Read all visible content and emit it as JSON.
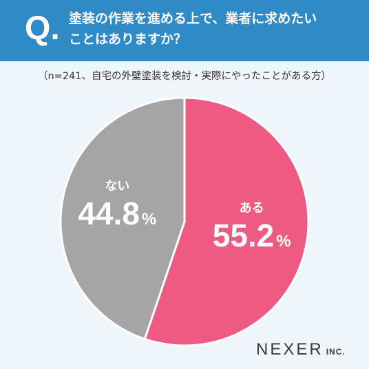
{
  "question": {
    "mark": "Q.",
    "line1": "塗装の作業を進める上で、業者に求めたい",
    "line2": "ことはありますか？"
  },
  "subtitle": "（n=241、自宅の外壁塗装を検討・実際にやったことがある方）",
  "colors": {
    "header": "#2f8ac6",
    "yes": "#ef5a83",
    "no": "#a5a5a5"
  },
  "logo": {
    "main": "NEXER",
    "suffix": "INC."
  },
  "chart_data": {
    "type": "pie",
    "categories": [
      "ある",
      "ない"
    ],
    "values": [
      55.2,
      44.8
    ],
    "value_labels": [
      "55.2",
      "44.8"
    ],
    "unit": "%"
  }
}
